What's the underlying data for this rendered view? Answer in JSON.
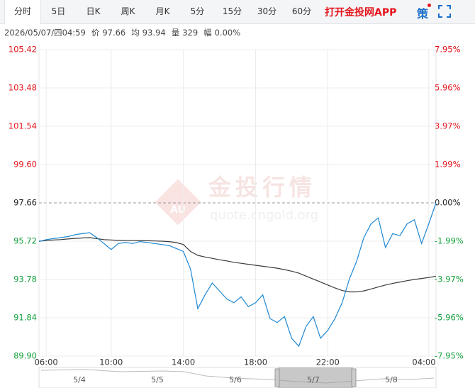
{
  "toolbar": {
    "tabs": [
      "分时",
      "5日",
      "日K",
      "周K",
      "月K",
      "5分",
      "15分",
      "30分",
      "60分"
    ],
    "app_link": "打开金投网APP",
    "strategy": "策"
  },
  "info": {
    "datetime": "2026/05/07/四04:59",
    "items": [
      {
        "label": "价",
        "value": "97.66"
      },
      {
        "label": "均",
        "value": "93.94"
      },
      {
        "label": "量",
        "value": "329"
      },
      {
        "label": "幅",
        "value": "0.00%"
      }
    ]
  },
  "watermark": {
    "title": "金投行情",
    "url": "quote.cngold.org",
    "logo": "AU"
  },
  "chart_data": {
    "type": "line",
    "categories": [
      null,
      "06:00",
      null,
      null,
      null,
      null,
      null,
      null,
      null,
      null,
      "10:00",
      null,
      null,
      null,
      null,
      null,
      null,
      null,
      null,
      null,
      "14:00",
      null,
      null,
      null,
      null,
      null,
      null,
      null,
      null,
      null,
      "18:00",
      null,
      null,
      null,
      null,
      null,
      null,
      null,
      null,
      null,
      "22:00",
      null,
      null,
      null,
      null,
      null,
      null,
      null,
      null,
      null,
      null,
      null,
      null,
      null,
      "04:00",
      null
    ],
    "series": [
      {
        "color": "#1e88d2",
        "values": [
          95.7,
          95.8,
          95.85,
          95.9,
          95.95,
          96.05,
          96.1,
          96.15,
          95.9,
          95.6,
          95.3,
          95.6,
          95.65,
          95.6,
          95.7,
          95.65,
          95.6,
          95.55,
          95.5,
          95.35,
          95.2,
          94.3,
          92.3,
          93.0,
          93.6,
          93.2,
          92.8,
          92.6,
          92.9,
          92.4,
          92.6,
          93.0,
          91.8,
          91.6,
          91.9,
          90.8,
          90.4,
          91.4,
          91.9,
          90.8,
          91.2,
          91.8,
          92.6,
          93.8,
          94.7,
          95.9,
          96.6,
          96.9,
          95.4,
          96.1,
          96.0,
          96.6,
          96.8,
          95.6,
          96.6,
          97.66
        ]
      },
      {
        "color": "#3a3a3a",
        "values": [
          95.72,
          95.75,
          95.78,
          95.8,
          95.83,
          95.86,
          95.88,
          95.9,
          95.85,
          95.8,
          95.78,
          95.76,
          95.75,
          95.75,
          95.74,
          95.74,
          95.73,
          95.72,
          95.7,
          95.65,
          95.55,
          95.2,
          95.0,
          94.92,
          94.85,
          94.78,
          94.72,
          94.65,
          94.6,
          94.55,
          94.5,
          94.45,
          94.4,
          94.35,
          94.28,
          94.2,
          94.1,
          93.95,
          93.8,
          93.65,
          93.5,
          93.35,
          93.22,
          93.15,
          93.15,
          93.2,
          93.3,
          93.4,
          93.5,
          93.58,
          93.65,
          93.72,
          93.78,
          93.83,
          93.88,
          93.94
        ]
      }
    ],
    "ylim": [
      89.9,
      105.42
    ],
    "yticks": [
      105.42,
      103.48,
      101.54,
      {
        "value": 99.6,
        "label": "99.60"
      },
      97.66,
      95.72,
      93.78,
      91.84,
      {
        "value": 89.9,
        "label": "89.90"
      }
    ],
    "y2lim": [
      -7.95,
      7.95
    ],
    "y2ticks": [
      {
        "value": 7.95,
        "label": "7.95%"
      },
      {
        "value": 5.96,
        "label": "5.96%"
      },
      {
        "value": 3.97,
        "label": "3.97%"
      },
      {
        "value": 1.99,
        "label": "1.99%"
      },
      {
        "value": 0,
        "label": "0.00%"
      },
      {
        "value": -1.99,
        "label": "-1.99%"
      },
      {
        "value": -3.97,
        "label": "-3.97%"
      },
      {
        "value": -5.96,
        "label": "-5.96%"
      },
      {
        "value": -7.95,
        "label": "-7.95%"
      }
    ],
    "grid": true
  },
  "navigator": {
    "labels": [
      "5/4",
      "5/5",
      "5/6",
      "5/7",
      "5/8"
    ]
  }
}
